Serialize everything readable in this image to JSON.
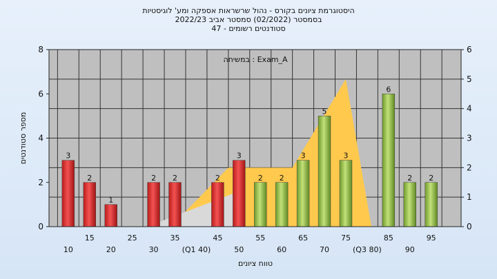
{
  "title_lines": [
    "היסטוגרמת ציונים בקורס - נהול שרשראות אספקה ומע' לוגיסטיות",
    "בסמסטר  (02/2022)  סמסטר אביב 2022/23",
    "סטודנטים רשומים - 47"
  ],
  "chart_data": {
    "type": "bar",
    "annotation": "במשיחה : Exam_A",
    "xlabel": "טווח ציונים",
    "ylabel": "מספר סטודנטים",
    "ylim": [
      0,
      8
    ],
    "yticks": [
      0,
      2,
      4,
      6,
      8
    ],
    "ylim_right": [
      0,
      6
    ],
    "yticks_right": [
      0,
      1,
      2,
      3,
      4,
      5,
      6
    ],
    "grid": true,
    "categories": [
      "10",
      "15",
      "20",
      "25",
      "30",
      "35",
      "(Q1 40)",
      "45",
      "50",
      "55",
      "60",
      "65",
      "70",
      "75",
      "(Q3 80)",
      "85",
      "90",
      "95"
    ],
    "values": [
      3,
      2,
      1,
      0,
      2,
      2,
      0,
      2,
      3,
      2,
      2,
      3,
      5,
      3,
      0,
      6,
      2,
      2
    ],
    "colors": {
      "below_median": "#d62c2c",
      "above_median": "#9cc24a",
      "box": "#ffc94d"
    },
    "box_plot": {
      "q1": 40,
      "median": 52.5,
      "q3": 80,
      "max_height_right_axis": 5
    }
  }
}
